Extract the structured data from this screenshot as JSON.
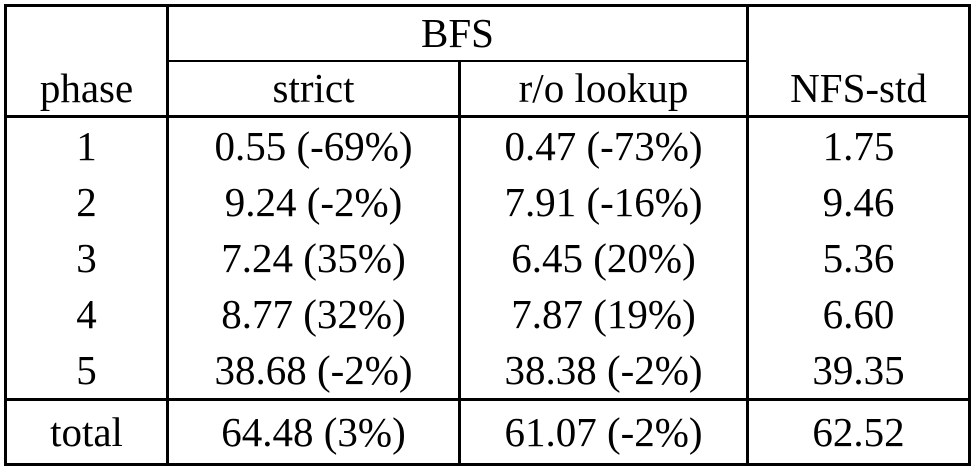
{
  "table": {
    "group_header": "BFS",
    "columns": {
      "phase": "phase",
      "strict": "strict",
      "ro_lookup": "r/o lookup",
      "nfs_std": "NFS-std"
    },
    "rows": [
      {
        "phase": "1",
        "strict": "0.55 (-69%)",
        "ro_lookup": "0.47 (-73%)",
        "nfs_std": "1.75"
      },
      {
        "phase": "2",
        "strict": "9.24 (-2%)",
        "ro_lookup": "7.91 (-16%)",
        "nfs_std": "9.46"
      },
      {
        "phase": "3",
        "strict": "7.24 (35%)",
        "ro_lookup": "6.45 (20%)",
        "nfs_std": "5.36"
      },
      {
        "phase": "4",
        "strict": "8.77 (32%)",
        "ro_lookup": "7.87 (19%)",
        "nfs_std": "6.60"
      },
      {
        "phase": "5",
        "strict": "38.68 (-2%)",
        "ro_lookup": "38.38 (-2%)",
        "nfs_std": "39.35"
      }
    ],
    "total_row": {
      "phase": "total",
      "strict": "64.48 (3%)",
      "ro_lookup": "61.07 (-2%)",
      "nfs_std": "62.52"
    }
  },
  "colors": {
    "border": "#000000",
    "text": "#000000",
    "background": "#ffffff"
  }
}
